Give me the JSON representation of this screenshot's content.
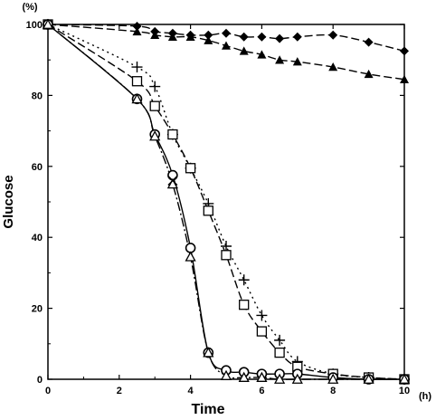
{
  "chart_data": {
    "type": "line",
    "xlabel": "Time",
    "ylabel": "Glucose",
    "x_unit": "(h)",
    "y_unit": "(%)",
    "xlim": [
      0,
      10
    ],
    "ylim": [
      0,
      100
    ],
    "x_ticks": [
      "0",
      "2",
      "4",
      "6",
      "8",
      "10"
    ],
    "y_ticks": [
      "0",
      "20",
      "40",
      "60",
      "80",
      "100"
    ],
    "grid": false,
    "legend": "none",
    "series": [
      {
        "marker": "diamond-filled",
        "line_style": "dashed",
        "x": [
          0,
          2.5,
          3,
          3.5,
          4,
          4.5,
          5,
          5.5,
          6,
          6.5,
          7,
          8,
          9,
          10
        ],
        "y": [
          100,
          99.5,
          98,
          97.5,
          97,
          97,
          97.5,
          96.5,
          96.5,
          96,
          96.5,
          97,
          95,
          92.5
        ]
      },
      {
        "marker": "triangle-filled",
        "line_style": "dashed",
        "x": [
          0,
          2.5,
          3,
          3.5,
          4,
          4.5,
          5,
          5.5,
          6,
          6.5,
          7,
          8,
          9,
          10
        ],
        "y": [
          100,
          98,
          97,
          96.5,
          96.5,
          95.5,
          94,
          92.5,
          91.5,
          90,
          89.5,
          88,
          86,
          84.5
        ]
      },
      {
        "marker": "plus",
        "line_style": "dotted",
        "x": [
          0,
          2.5,
          3,
          3.5,
          4,
          4.5,
          5,
          5.5,
          6,
          6.5,
          7,
          8,
          9,
          10
        ],
        "y": [
          100,
          88,
          82.5,
          69,
          59.5,
          49.5,
          37.5,
          28,
          18,
          11,
          5,
          1.5,
          0.5,
          0
        ]
      },
      {
        "marker": "square-open",
        "line_style": "dashed",
        "x": [
          0,
          2.5,
          3,
          3.5,
          4,
          4.5,
          5,
          5.5,
          6,
          6.5,
          7,
          8,
          9,
          10
        ],
        "y": [
          100,
          84,
          77,
          69,
          59.5,
          47.5,
          35,
          21,
          13.5,
          7.5,
          3.5,
          1.5,
          0.5,
          0
        ]
      },
      {
        "marker": "circle-open",
        "line_style": "solid",
        "x": [
          0,
          2.5,
          3,
          3.5,
          4,
          4.5,
          5,
          5.5,
          6,
          6.5,
          7,
          8,
          9,
          10
        ],
        "y": [
          100,
          79,
          69,
          57.5,
          37,
          7.5,
          2.5,
          2,
          1.5,
          1.5,
          1.5,
          0.5,
          0,
          0
        ]
      },
      {
        "marker": "triangle-open",
        "line_style": "dash-dot",
        "x": [
          0,
          2.5,
          3,
          3.5,
          4,
          4.5,
          5,
          5.5,
          6,
          6.5,
          7,
          8,
          9,
          10
        ],
        "y": [
          100,
          79,
          68.5,
          55,
          34.5,
          7.5,
          1,
          0.5,
          0.5,
          0,
          0,
          0,
          0,
          0
        ]
      },
      {
        "marker": "cross",
        "line_style": "none",
        "x": [
          3.5
        ],
        "y": [
          56
        ]
      }
    ]
  }
}
